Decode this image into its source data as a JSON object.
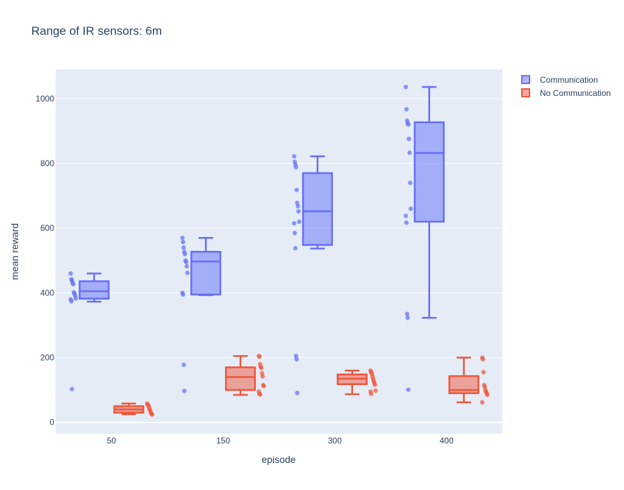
{
  "chart_data": {
    "type": "box",
    "title": "Range of IR sensors: 6m",
    "xlabel": "episode",
    "ylabel": "mean reward",
    "categories": [
      "50",
      "150",
      "300",
      "400"
    ],
    "ylim": [
      -35,
      1090
    ],
    "yticks": [
      0,
      200,
      400,
      600,
      800,
      1000
    ],
    "grid": true,
    "legend_position": "top-right",
    "colors": {
      "plot_bg": "#e5ecf6",
      "communication": "#636efa",
      "no_communication": "#ef553b"
    },
    "series": [
      {
        "name": "Communication",
        "boxes": [
          {
            "category": "50",
            "min": 373,
            "q1": 382,
            "median": 405,
            "q3": 436,
            "max": 460,
            "points": [
              460,
              442,
              438,
              431,
              427,
              402,
              398,
              392,
              383,
              380,
              374,
              103
            ]
          },
          {
            "category": "150",
            "min": 393,
            "q1": 395,
            "median": 497,
            "q3": 527,
            "max": 570,
            "points": [
              570,
              557,
              540,
              527,
              520,
              500,
              495,
              482,
              462,
              400,
              395,
              178,
              97
            ]
          },
          {
            "category": "300",
            "min": 537,
            "q1": 548,
            "median": 652,
            "q3": 770,
            "max": 822,
            "points": [
              822,
              805,
              796,
              788,
              718,
              678,
              668,
              652,
              620,
              615,
              585,
              538,
              205,
              195,
              91
            ]
          },
          {
            "category": "400",
            "min": 323,
            "q1": 620,
            "median": 832,
            "q3": 927,
            "max": 1036,
            "points": [
              1036,
              967,
              932,
              925,
              920,
              876,
              833,
              740,
              660,
              638,
              617,
              335,
              323,
              101
            ]
          }
        ]
      },
      {
        "name": "No Communication",
        "boxes": [
          {
            "category": "50",
            "min": 25,
            "q1": 30,
            "median": 40,
            "q3": 50,
            "max": 58,
            "points": [
              58,
              55,
              52,
              46,
              40,
              35,
              30,
              26,
              24
            ]
          },
          {
            "category": "150",
            "min": 85,
            "q1": 100,
            "median": 140,
            "q3": 170,
            "max": 205,
            "points": [
              205,
              203,
              180,
              172,
              168,
              152,
              142,
              115,
              112,
              95,
              88,
              86
            ]
          },
          {
            "category": "300",
            "min": 87,
            "q1": 118,
            "median": 135,
            "q3": 148,
            "max": 160,
            "points": [
              160,
              155,
              150,
              142,
              135,
              128,
              122,
              116,
              98,
              95,
              88
            ]
          },
          {
            "category": "400",
            "min": 62,
            "q1": 90,
            "median": 100,
            "q3": 143,
            "max": 200,
            "points": [
              200,
              195,
              155,
              115,
              110,
              100,
              95,
              90,
              85,
              62
            ]
          }
        ]
      }
    ]
  }
}
